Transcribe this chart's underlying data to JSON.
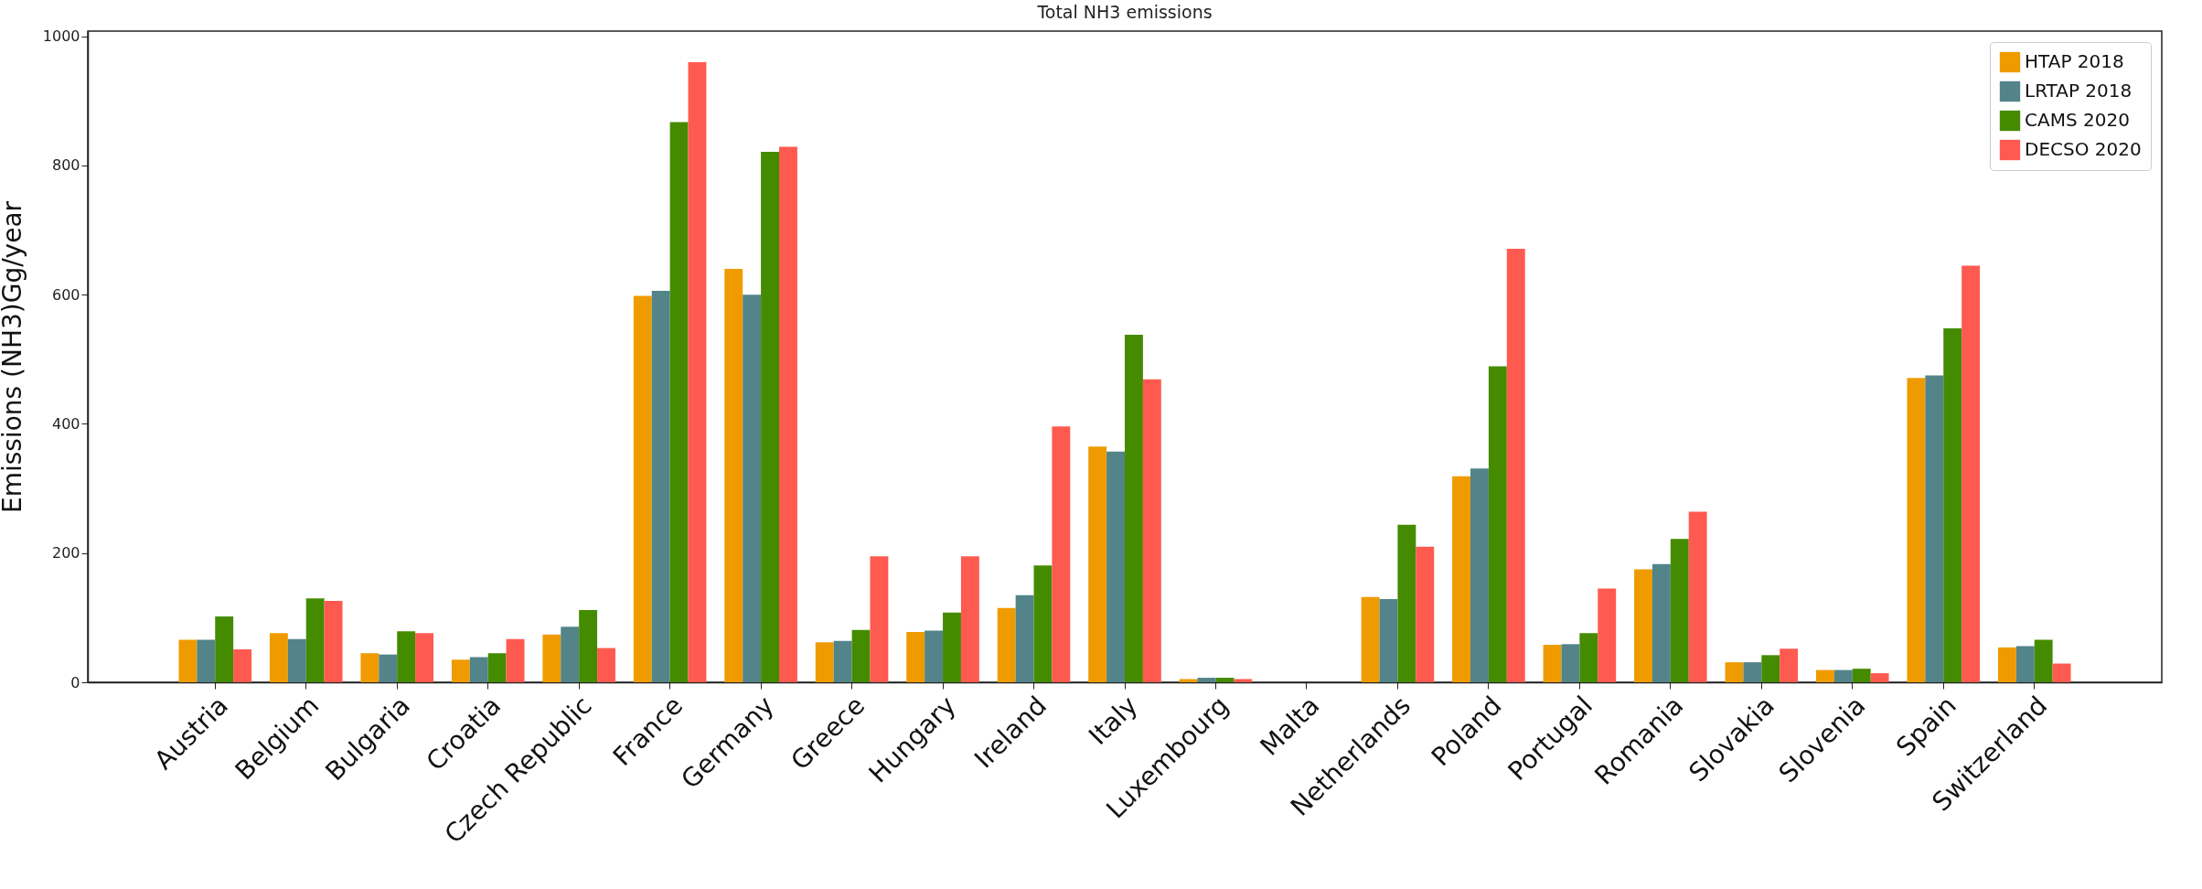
{
  "chart_data": {
    "type": "bar",
    "title": "Total NH3 emissions",
    "ylabel": "Emissions (NH3)Gg/year",
    "categories": [
      "Austria",
      "Belgium",
      "Bulgaria",
      "Croatia",
      "Czech Republic",
      "France",
      "Germany",
      "Greece",
      "Hungary",
      "Ireland",
      "Italy",
      "Luxembourg",
      "Malta",
      "Netherlands",
      "Poland",
      "Portugal",
      "Romania",
      "Slovakia",
      "Slovenia",
      "Spain",
      "Switzerland"
    ],
    "series": [
      {
        "name": "HTAP 2018",
        "color": "#ef9b00",
        "values": [
          66,
          76,
          45,
          35,
          74,
          598,
          640,
          62,
          78,
          115,
          365,
          5,
          0,
          132,
          319,
          58,
          175,
          31,
          19,
          471,
          54
        ]
      },
      {
        "name": "LRTAP 2018",
        "color": "#52848a",
        "values": [
          66,
          67,
          43,
          39,
          86,
          606,
          600,
          64,
          80,
          135,
          357,
          7,
          0,
          129,
          331,
          59,
          183,
          31,
          19,
          475,
          56
        ]
      },
      {
        "name": "CAMS 2020",
        "color": "#458b00",
        "values": [
          102,
          130,
          79,
          45,
          112,
          867,
          821,
          81,
          108,
          181,
          538,
          7,
          0,
          244,
          489,
          76,
          222,
          42,
          21,
          548,
          66
        ]
      },
      {
        "name": "DECSO 2020",
        "color": "#ff5a50",
        "values": [
          51,
          126,
          76,
          67,
          53,
          960,
          829,
          195,
          195,
          396,
          469,
          5,
          0,
          210,
          671,
          145,
          264,
          52,
          14,
          645,
          29
        ]
      }
    ],
    "ylim": [
      0,
      1008
    ],
    "yticks": [
      0,
      200,
      400,
      600,
      800,
      1000
    ],
    "grid": false,
    "legend": "top right"
  }
}
